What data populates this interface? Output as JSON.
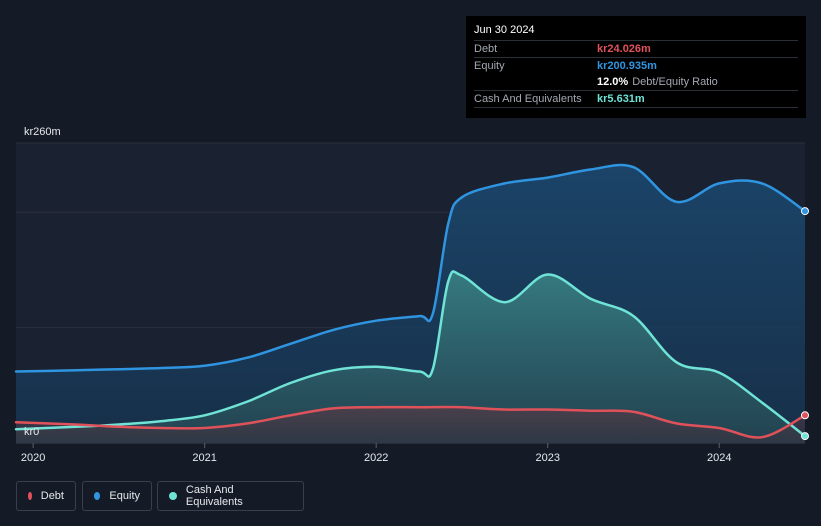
{
  "tooltip": {
    "date": "Jun 30 2024",
    "debt_label": "Debt",
    "debt_value": "kr24.026m",
    "equity_label": "Equity",
    "equity_value": "kr200.935m",
    "ratio_value": "12.0%",
    "ratio_label": "Debt/Equity Ratio",
    "cash_label": "Cash And Equivalents",
    "cash_value": "kr5.631m"
  },
  "legend": {
    "debt": "Debt",
    "equity": "Equity",
    "cash": "Cash And Equivalents"
  },
  "colors": {
    "debt": "#e0525a",
    "equity": "#2f95e0",
    "cash": "#6fe3d6"
  },
  "chart_data": {
    "type": "area",
    "title": "",
    "xlabel": "",
    "ylabel": "",
    "y_top_label": "kr260m",
    "y_bottom_label": "kr0",
    "ylim": [
      0,
      260
    ],
    "xlim": [
      2019.9,
      2024.5
    ],
    "x_ticks": [
      2020,
      2021,
      2022,
      2023,
      2024
    ],
    "x_tick_labels": [
      "2020",
      "2021",
      "2022",
      "2023",
      "2024"
    ],
    "series": [
      {
        "name": "Equity",
        "key": "equity",
        "x": [
          2019.9,
          2020.25,
          2020.5,
          2020.75,
          2021.0,
          2021.25,
          2021.5,
          2021.75,
          2022.0,
          2022.25,
          2022.33,
          2022.42,
          2022.5,
          2022.75,
          2023.0,
          2023.25,
          2023.5,
          2023.75,
          2024.0,
          2024.25,
          2024.5
        ],
        "values": [
          62,
          63,
          64,
          65,
          67,
          74,
          86,
          98,
          106,
          110,
          112,
          190,
          213,
          225,
          230,
          237,
          239,
          209,
          225,
          225,
          201
        ]
      },
      {
        "name": "Cash And Equivalents",
        "key": "cash",
        "x": [
          2019.9,
          2020.25,
          2020.5,
          2020.75,
          2021.0,
          2021.25,
          2021.5,
          2021.75,
          2022.0,
          2022.25,
          2022.33,
          2022.42,
          2022.5,
          2022.75,
          2023.0,
          2023.25,
          2023.5,
          2023.75,
          2024.0,
          2024.25,
          2024.5
        ],
        "values": [
          12,
          14,
          16,
          19,
          24,
          36,
          52,
          63,
          66,
          62,
          64,
          140,
          145,
          122,
          146,
          125,
          110,
          70,
          61,
          35,
          6
        ]
      },
      {
        "name": "Debt",
        "key": "debt",
        "x": [
          2019.9,
          2020.25,
          2020.5,
          2020.75,
          2021.0,
          2021.25,
          2021.5,
          2021.75,
          2022.0,
          2022.25,
          2022.5,
          2022.75,
          2023.0,
          2023.25,
          2023.5,
          2023.75,
          2024.0,
          2024.25,
          2024.5
        ],
        "values": [
          18,
          16,
          14,
          13,
          13,
          17,
          24,
          30,
          31,
          31,
          31,
          29,
          29,
          28,
          27,
          17,
          13,
          5,
          24
        ]
      }
    ]
  }
}
